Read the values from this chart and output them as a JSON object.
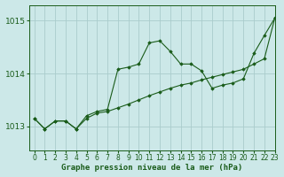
{
  "title": "Graphe pression niveau de la mer (hPa)",
  "bg_color": "#cce8e8",
  "grid_color": "#aacccc",
  "line_color": "#1a5c1a",
  "xlim": [
    -0.5,
    23
  ],
  "ylim": [
    1012.55,
    1015.3
  ],
  "yticks": [
    1013,
    1014,
    1015
  ],
  "xticks": [
    0,
    1,
    2,
    3,
    4,
    5,
    6,
    7,
    8,
    9,
    10,
    11,
    12,
    13,
    14,
    15,
    16,
    17,
    18,
    19,
    20,
    21,
    22,
    23
  ],
  "series1_x": [
    0,
    1,
    2,
    3,
    4,
    5,
    6,
    7,
    8,
    9,
    10,
    11,
    12,
    13,
    14,
    15,
    16,
    17,
    18,
    19,
    20,
    21,
    22,
    23
  ],
  "series1_y": [
    1013.15,
    1012.95,
    1013.1,
    1013.1,
    1012.95,
    1013.15,
    1013.25,
    1013.28,
    1013.35,
    1013.42,
    1013.5,
    1013.58,
    1013.65,
    1013.72,
    1013.78,
    1013.82,
    1013.88,
    1013.93,
    1013.98,
    1014.03,
    1014.08,
    1014.18,
    1014.28,
    1015.05
  ],
  "series2_x": [
    0,
    1,
    2,
    3,
    4,
    5,
    6,
    7,
    8,
    9,
    10,
    11,
    12,
    13,
    14,
    15,
    16,
    17,
    18,
    19,
    20,
    21,
    22,
    23
  ],
  "series2_y": [
    1013.15,
    1012.95,
    1013.1,
    1013.1,
    1012.95,
    1013.2,
    1013.28,
    1013.32,
    1014.08,
    1014.12,
    1014.18,
    1014.58,
    1014.62,
    1014.42,
    1014.18,
    1014.18,
    1014.05,
    1013.72,
    1013.78,
    1013.82,
    1013.9,
    1014.38,
    1014.72,
    1015.05
  ]
}
